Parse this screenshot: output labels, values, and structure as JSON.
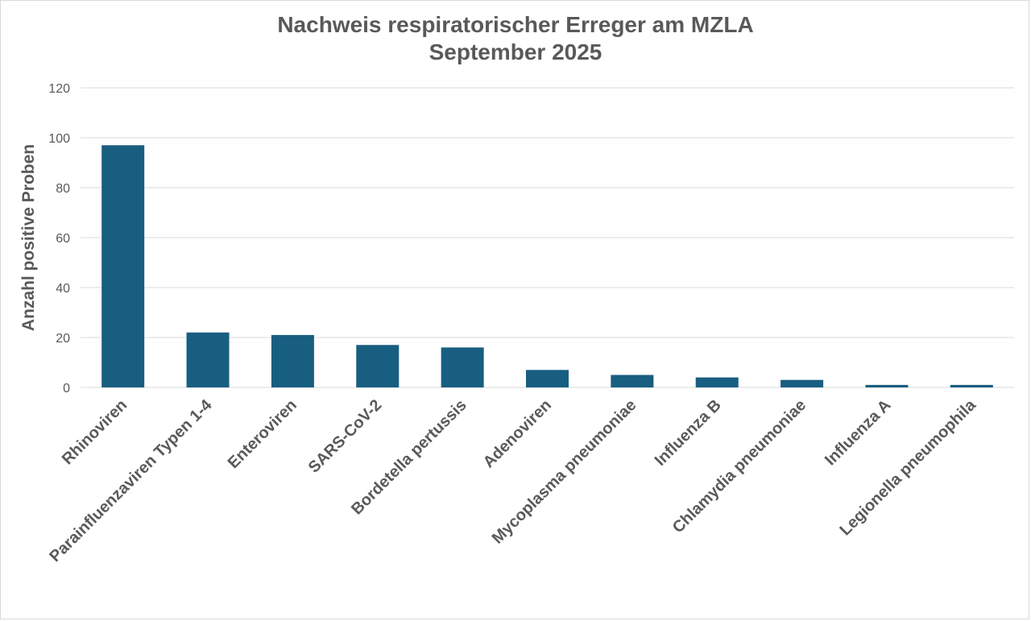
{
  "chart_data": {
    "type": "bar",
    "title": "Nachweis respiratorischer Erreger am MZLA",
    "subtitle": "September 2025",
    "xlabel": "",
    "ylabel": "Anzahl positive Proben",
    "ylim": [
      0,
      120
    ],
    "yticks": [
      0,
      20,
      40,
      60,
      80,
      100,
      120
    ],
    "grid": true,
    "legend": "none",
    "bar_color": "#185e80",
    "categories": [
      "Rhinoviren",
      "Parainfluenzaviren Typen 1-4",
      "Enteroviren",
      "SARS-CoV-2",
      "Bordetella pertussis",
      "Adenoviren",
      "Mycoplasma pneumoniae",
      "Influenza B",
      "Chlamydia pneumoniae",
      "Influenza A",
      "Legionella pneumophila"
    ],
    "values": [
      97,
      22,
      21,
      17,
      16,
      7,
      5,
      4,
      3,
      1,
      1
    ]
  }
}
